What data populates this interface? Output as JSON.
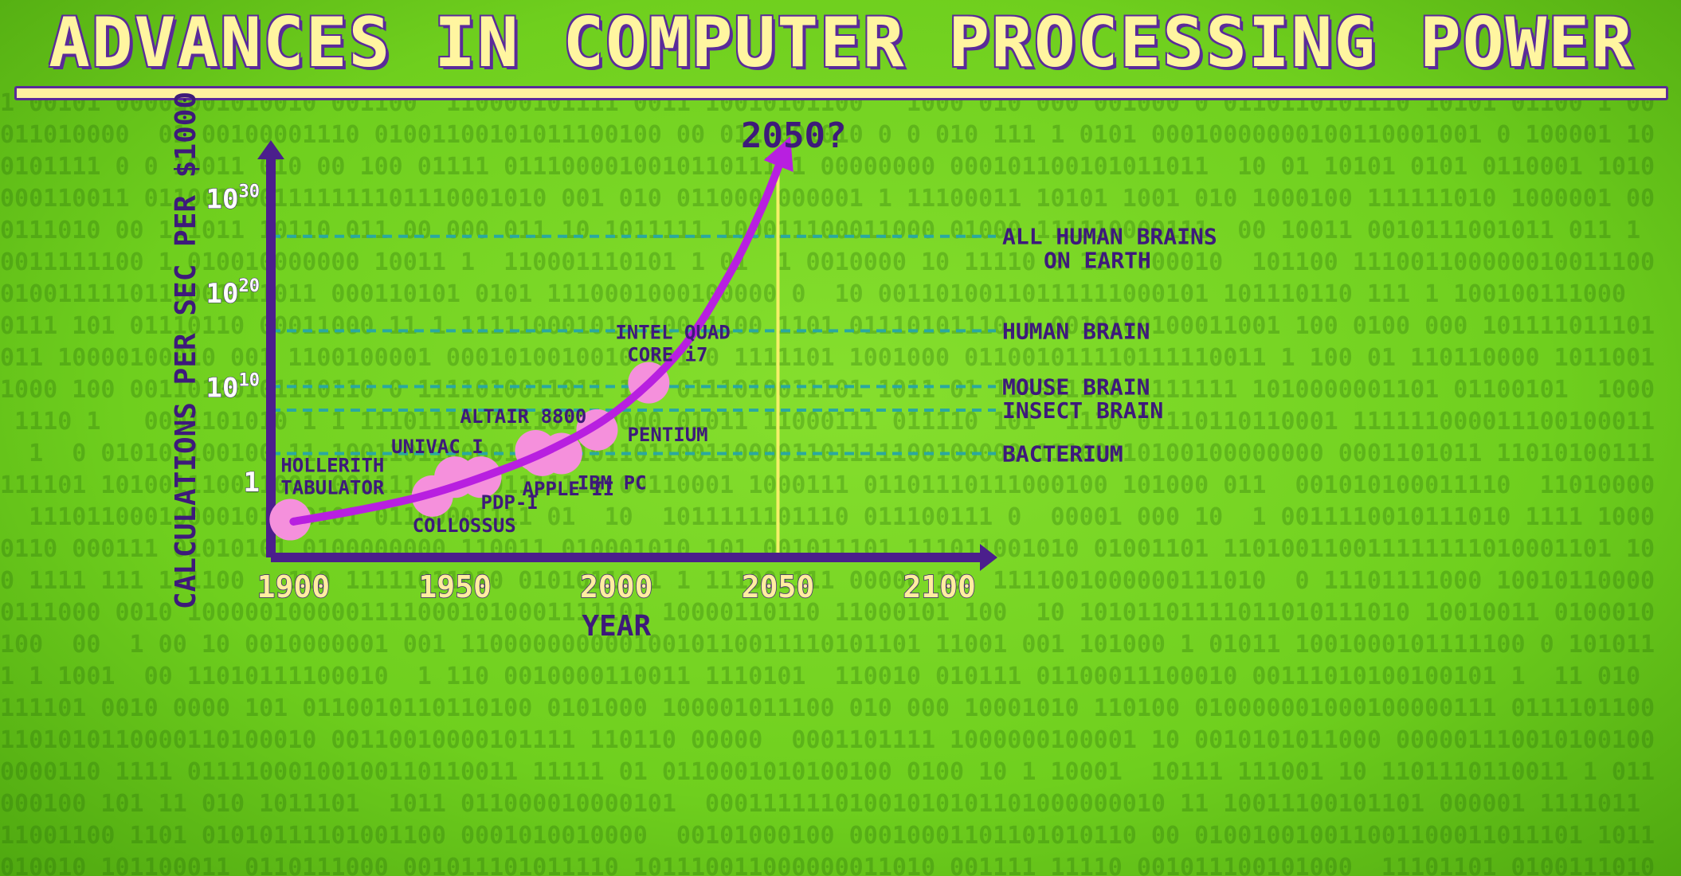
{
  "title": "ADVANCES IN COMPUTER PROCESSING POWER",
  "colors": {
    "background": "#76d424",
    "axis": "#4b1f8c",
    "curve": "#b81fe0",
    "point": "#f590dc",
    "reference_line": "#2aa8a0",
    "highlight_line": "#f4f06a",
    "text": "#3d1a7a",
    "title_fill": "#fff5a0"
  },
  "chart_data": {
    "type": "line",
    "title": "ADVANCES IN COMPUTER PROCESSING POWER",
    "xlabel": "YEAR",
    "ylabel": "CALCULATIONS PER SEC PER $1000",
    "xlim": [
      1893,
      2115
    ],
    "ylim_log10": [
      -8,
      35
    ],
    "y_scale": "log",
    "x_ticks": [
      1900,
      1950,
      2000,
      2050,
      2100
    ],
    "y_ticks": [
      {
        "exp": 0,
        "base": "1",
        "sup": ""
      },
      {
        "exp": 10,
        "base": "10",
        "sup": "10"
      },
      {
        "exp": 20,
        "base": "10",
        "sup": "20"
      },
      {
        "exp": 30,
        "base": "10",
        "sup": "30"
      }
    ],
    "grid": false,
    "points": [
      {
        "label": "HOLLERITH TABULATOR",
        "x": 1899,
        "y_log10": -4
      },
      {
        "label": "COLLOSSUS",
        "x": 1943,
        "y_log10": -1.5
      },
      {
        "label": "UNIVAC I",
        "x": 1950,
        "y_log10": 0.5
      },
      {
        "label": "PDP-I",
        "x": 1958,
        "y_log10": 0.5
      },
      {
        "label": "ALTAIR 8800",
        "x": 1975,
        "y_log10": 3.3
      },
      {
        "label": "APPLE II",
        "x": 1977,
        "y_log10": 2.8
      },
      {
        "label": "IBM PC",
        "x": 1983,
        "y_log10": 3
      },
      {
        "label": "PENTIUM",
        "x": 1994,
        "y_log10": 5.5
      },
      {
        "label": "INTEL QUAD CORE i7",
        "x": 2010,
        "y_log10": 10.5
      }
    ],
    "trend_curve": [
      {
        "x": 1900,
        "y_log10": -4.2
      },
      {
        "x": 1920,
        "y_log10": -3
      },
      {
        "x": 1940,
        "y_log10": -1.5
      },
      {
        "x": 1960,
        "y_log10": 0.7
      },
      {
        "x": 1980,
        "y_log10": 3.5
      },
      {
        "x": 2000,
        "y_log10": 7.5
      },
      {
        "x": 2020,
        "y_log10": 14
      },
      {
        "x": 2035,
        "y_log10": 22
      },
      {
        "x": 2045,
        "y_log10": 29
      },
      {
        "x": 2052,
        "y_log10": 35
      }
    ],
    "curve_label": "2050?",
    "vertical_marker_x": 2050,
    "reference_levels": [
      {
        "label": "ALL HUMAN BRAINS ON EARTH",
        "label_lines": [
          "ALL HUMAN BRAINS",
          "ON EARTH"
        ],
        "y_log10": 26
      },
      {
        "label": "HUMAN BRAIN",
        "label_lines": [
          "HUMAN BRAIN"
        ],
        "y_log10": 16
      },
      {
        "label": "MOUSE BRAIN",
        "label_lines": [
          "MOUSE BRAIN"
        ],
        "y_log10": 10.1
      },
      {
        "label": "INSECT BRAIN",
        "label_lines": [
          "INSECT BRAIN"
        ],
        "y_log10": 7.6
      },
      {
        "label": "BACTERIUM",
        "label_lines": [
          "BACTERIUM"
        ],
        "y_log10": 3
      }
    ]
  }
}
